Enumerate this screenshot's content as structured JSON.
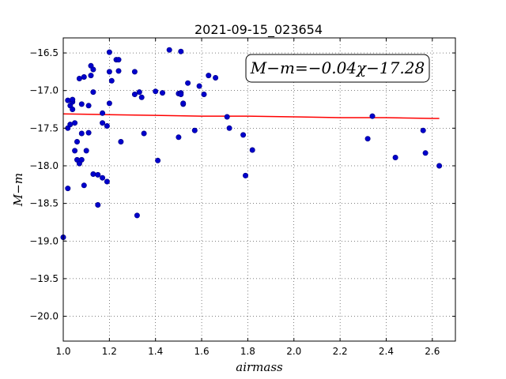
{
  "chart_data": {
    "type": "scatter",
    "title": "2021-09-15_023654",
    "xlabel": "airmass",
    "ylabel": "M−m",
    "xlim": [
      1.0,
      2.7
    ],
    "ylim": [
      -16.3,
      -20.33
    ],
    "y_inverted": true,
    "grid": true,
    "xticks": [
      1.0,
      1.2,
      1.4,
      1.6,
      1.8,
      2.0,
      2.2,
      2.4,
      2.6
    ],
    "xtick_labels": [
      "1.0",
      "1.2",
      "1.4",
      "1.6",
      "1.8",
      "2.0",
      "2.2",
      "2.4",
      "2.6"
    ],
    "yticks": [
      -16.5,
      -17.0,
      -17.5,
      -18.0,
      -18.5,
      -19.0,
      -19.5,
      -20.0
    ],
    "ytick_labels": [
      "−16.5",
      "−17.0",
      "−17.5",
      "−18.0",
      "−18.5",
      "−19.0",
      "−19.5",
      "−20.0"
    ],
    "annotation": "M−m=−0.04χ−17.28",
    "annotation_position": "top-right",
    "point_color": "#0000cc",
    "line_color": "#ff0000",
    "points": [
      [
        1.0,
        -18.95
      ],
      [
        1.02,
        -17.13
      ],
      [
        1.02,
        -18.3
      ],
      [
        1.02,
        -17.5
      ],
      [
        1.03,
        -17.45
      ],
      [
        1.03,
        -17.2
      ],
      [
        1.04,
        -17.15
      ],
      [
        1.04,
        -17.25
      ],
      [
        1.04,
        -17.12
      ],
      [
        1.05,
        -17.43
      ],
      [
        1.05,
        -17.8
      ],
      [
        1.06,
        -17.92
      ],
      [
        1.06,
        -17.68
      ],
      [
        1.07,
        -17.97
      ],
      [
        1.07,
        -16.84
      ],
      [
        1.08,
        -17.18
      ],
      [
        1.08,
        -17.57
      ],
      [
        1.08,
        -17.92
      ],
      [
        1.09,
        -18.26
      ],
      [
        1.09,
        -16.82
      ],
      [
        1.1,
        -17.8
      ],
      [
        1.11,
        -17.2
      ],
      [
        1.11,
        -17.56
      ],
      [
        1.12,
        -16.67
      ],
      [
        1.12,
        -16.8
      ],
      [
        1.13,
        -16.72
      ],
      [
        1.13,
        -17.02
      ],
      [
        1.13,
        -18.11
      ],
      [
        1.15,
        -18.12
      ],
      [
        1.15,
        -18.52
      ],
      [
        1.17,
        -17.3
      ],
      [
        1.17,
        -17.43
      ],
      [
        1.17,
        -18.16
      ],
      [
        1.19,
        -18.21
      ],
      [
        1.19,
        -17.47
      ],
      [
        1.2,
        -17.17
      ],
      [
        1.2,
        -16.49
      ],
      [
        1.2,
        -16.75
      ],
      [
        1.21,
        -16.87
      ],
      [
        1.23,
        -16.59
      ],
      [
        1.24,
        -16.59
      ],
      [
        1.24,
        -16.74
      ],
      [
        1.25,
        -17.68
      ],
      [
        1.31,
        -16.75
      ],
      [
        1.31,
        -17.05
      ],
      [
        1.32,
        -18.66
      ],
      [
        1.33,
        -17.02
      ],
      [
        1.34,
        -17.09
      ],
      [
        1.35,
        -17.57
      ],
      [
        1.4,
        -17.01
      ],
      [
        1.41,
        -17.93
      ],
      [
        1.43,
        -17.03
      ],
      [
        1.46,
        -16.46
      ],
      [
        1.5,
        -17.62
      ],
      [
        1.5,
        -17.04
      ],
      [
        1.51,
        -17.03
      ],
      [
        1.51,
        -17.05
      ],
      [
        1.51,
        -16.48
      ],
      [
        1.52,
        -17.18
      ],
      [
        1.52,
        -17.17
      ],
      [
        1.54,
        -16.9
      ],
      [
        1.57,
        -17.53
      ],
      [
        1.59,
        -16.94
      ],
      [
        1.61,
        -17.05
      ],
      [
        1.63,
        -16.8
      ],
      [
        1.66,
        -16.83
      ],
      [
        1.71,
        -17.35
      ],
      [
        1.72,
        -17.5
      ],
      [
        1.78,
        -17.59
      ],
      [
        1.79,
        -18.13
      ],
      [
        1.82,
        -17.79
      ],
      [
        2.32,
        -17.64
      ],
      [
        2.34,
        -17.34
      ],
      [
        2.44,
        -17.89
      ],
      [
        2.56,
        -17.53
      ],
      [
        2.57,
        -17.83
      ],
      [
        2.63,
        -18.0
      ]
    ],
    "fit_line": {
      "x": [
        1.0,
        1.2,
        1.4,
        1.6,
        1.8,
        2.0,
        2.2,
        2.4,
        2.6,
        2.63
      ],
      "y": [
        -17.31,
        -17.32,
        -17.33,
        -17.34,
        -17.34,
        -17.35,
        -17.36,
        -17.36,
        -17.37,
        -17.37
      ]
    }
  }
}
